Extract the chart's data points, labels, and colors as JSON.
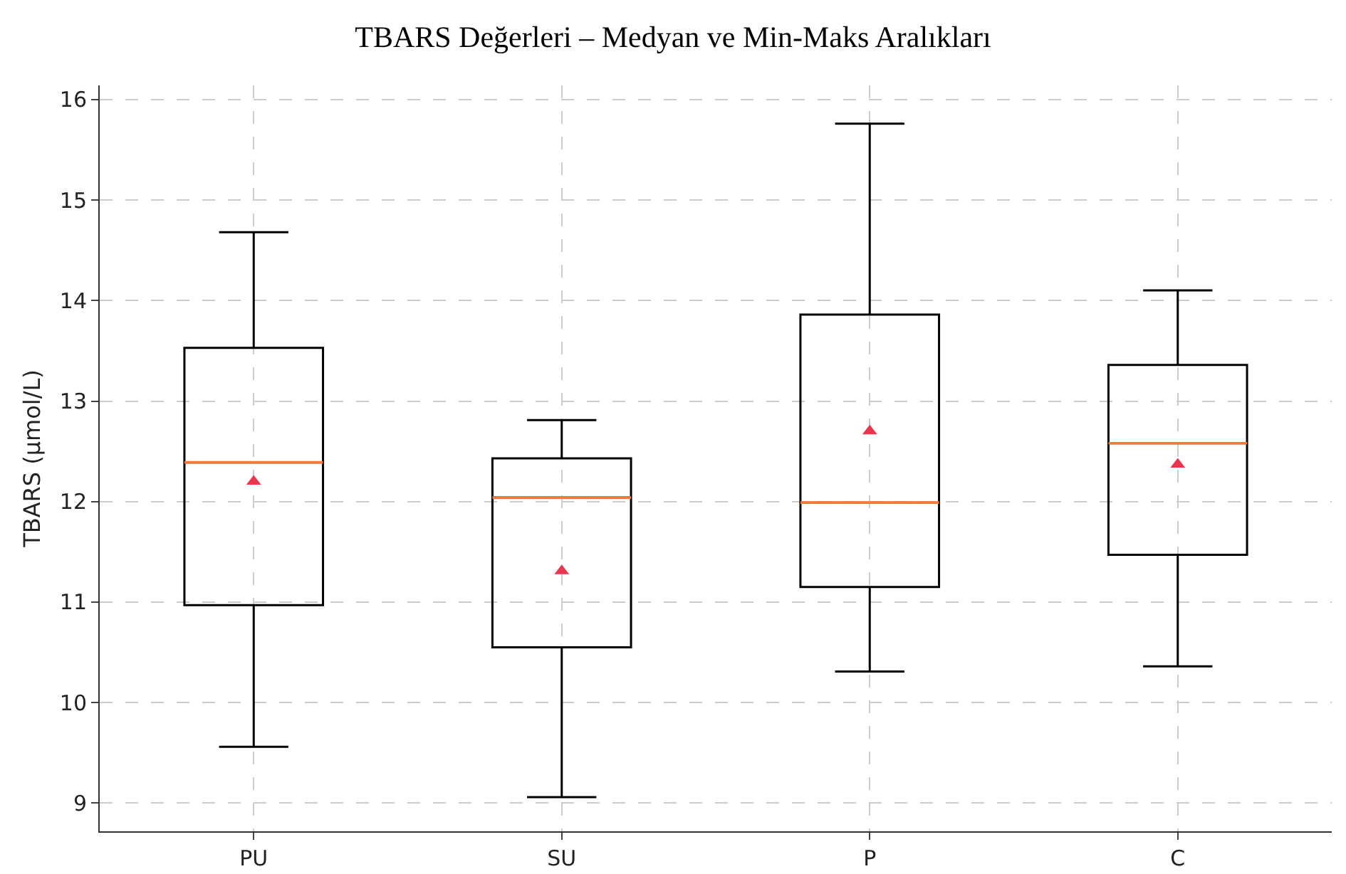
{
  "chart_data": {
    "type": "box",
    "title": "TBARS Değerleri – Medyan ve Min-Maks Aralıkları",
    "ylabel": "TBARS (µmol/L)",
    "categories": [
      "PU",
      "SU",
      "P",
      "C"
    ],
    "series": [
      {
        "color": "#000000",
        "boxes": [
          {
            "low": 9.56,
            "q1": 10.97,
            "median": 12.39,
            "q3": 13.53,
            "high": 14.68,
            "mean": 12.2
          },
          {
            "low": 9.06,
            "q1": 10.55,
            "median": 12.04,
            "q3": 12.43,
            "high": 12.81,
            "mean": 11.31
          },
          {
            "low": 10.31,
            "q1": 11.15,
            "median": 11.99,
            "q3": 13.86,
            "high": 15.76,
            "mean": 12.7
          },
          {
            "low": 10.36,
            "q1": 11.47,
            "median": 12.58,
            "q3": 13.36,
            "high": 14.1,
            "mean": 12.37
          }
        ]
      }
    ],
    "ylim": [
      8.72,
      16.14
    ],
    "yticks": [
      9,
      10,
      11,
      12,
      13,
      14,
      15,
      16
    ],
    "grid": true,
    "marker": "triangle"
  }
}
